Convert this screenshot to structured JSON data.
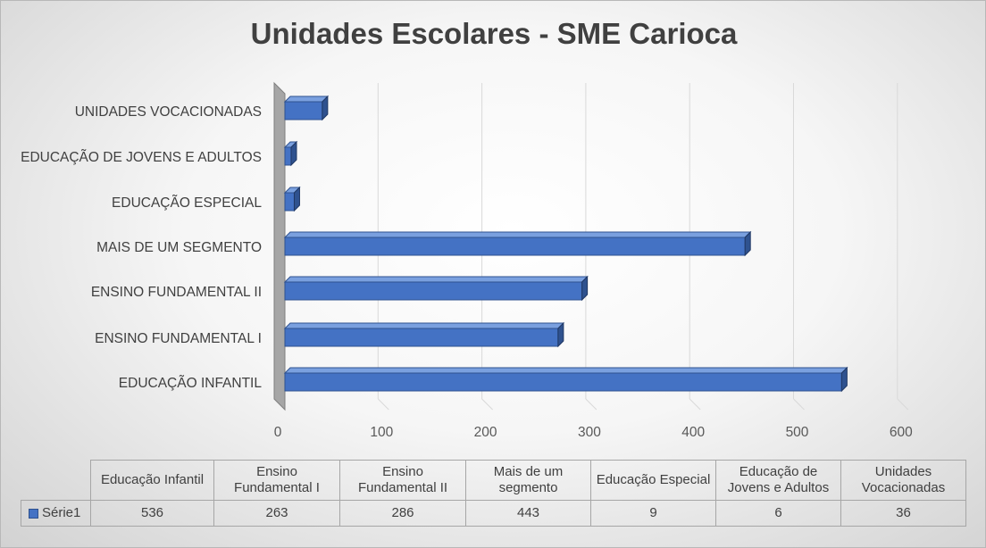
{
  "chart_data": {
    "type": "bar",
    "orientation": "horizontal",
    "title": "Unidades Escolares - SME Carioca",
    "categories": [
      "EDUCAÇÃO INFANTIL",
      "ENSINO FUNDAMENTAL I",
      "ENSINO FUNDAMENTAL II",
      "MAIS DE UM SEGMENTO",
      "EDUCAÇÃO ESPECIAL",
      "EDUCAÇÃO DE JOVENS E ADULTOS",
      "UNIDADES VOCACIONADAS"
    ],
    "series": [
      {
        "name": "Série1",
        "values": [
          536,
          263,
          286,
          443,
          9,
          6,
          36
        ]
      }
    ],
    "xlim": [
      0,
      600
    ],
    "xticks": [
      "0",
      "100",
      "200",
      "300",
      "400",
      "500",
      "600"
    ],
    "grid": true,
    "style_3d": true,
    "colors": {
      "bar": "#4472c4",
      "bar_dark": "#2f528f",
      "wall": "#a6a6a6",
      "grid": "#d9d9d9"
    },
    "data_table": {
      "headers": [
        "Educação Infantil",
        "Ensino Fundamental I",
        "Ensino Fundamental II",
        "Mais de um segmento",
        "Educação Especial",
        "Educação de Jovens e Adultos",
        "Unidades Vocacionadas"
      ],
      "series_label": "Série1",
      "values": [
        "536",
        "263",
        "286",
        "443",
        "9",
        "6",
        "36"
      ]
    }
  }
}
